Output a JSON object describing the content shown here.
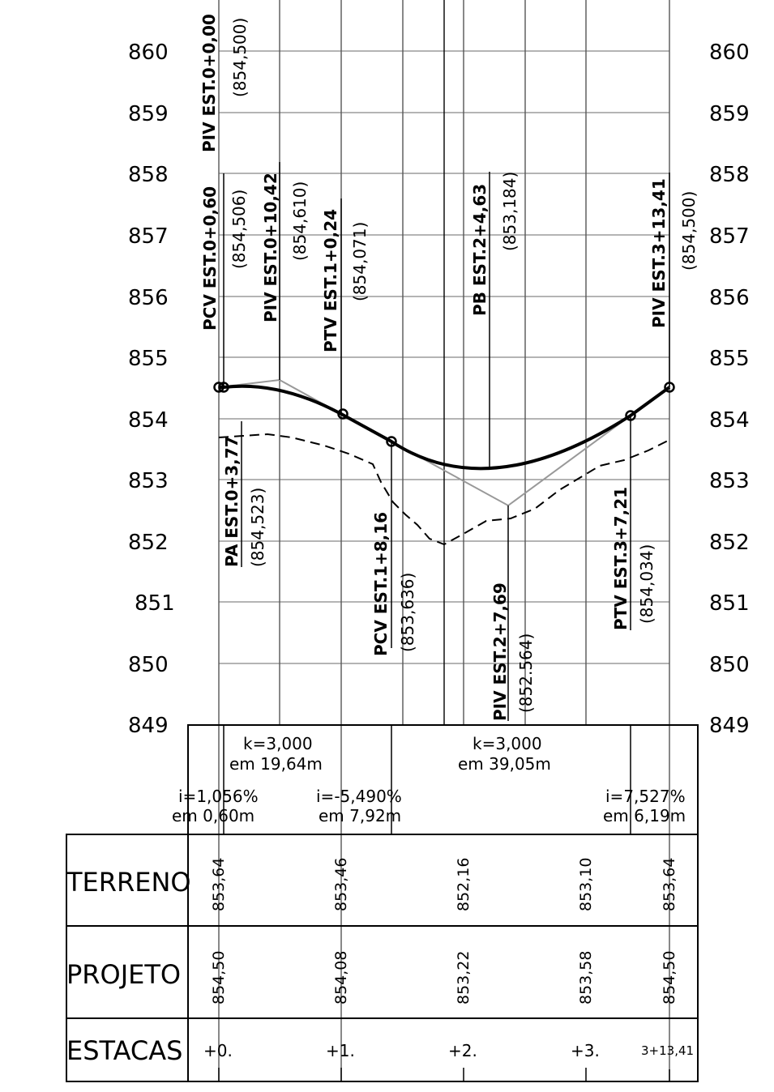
{
  "elevation_labels": [
    "860",
    "859",
    "858",
    "857",
    "856",
    "855",
    "854",
    "853",
    "852",
    "851",
    "850",
    "849"
  ],
  "stations": {
    "piv0": {
      "label": "PIV  EST.0+0,00",
      "elev": "(854,500)"
    },
    "pcv0": {
      "label": "PCV  EST.0+0,60",
      "elev": "(854,506)"
    },
    "piv0b": {
      "label": "PIV  EST.0+10,42",
      "elev": "(854,610)"
    },
    "ptv1": {
      "label": "PTV  EST.1+0,24",
      "elev": "(854,071)"
    },
    "pb2": {
      "label": "PB  EST.2+4,63",
      "elev": "(853,184)"
    },
    "piv3": {
      "label": "PIV  EST.3+13,41",
      "elev": "(854,500)"
    },
    "pa0": {
      "label": "PA  EST.0+3,77",
      "elev": "(854,523)"
    },
    "pcv1": {
      "label": "PCV  EST.1+8,16",
      "elev": "(853,636)"
    },
    "piv2": {
      "label": "PIV  EST.2+7,69",
      "elev": "(852.564)"
    },
    "ptv3": {
      "label": "PTV  EST.3+7,21",
      "elev": "(854,034)"
    }
  },
  "curves": {
    "k1": "k=3,000",
    "em1": "em  19,64m",
    "k2": "k=3,000",
    "em2": "em  39,05m"
  },
  "grades": {
    "g1": "i=1,056%",
    "g1em": "em  0,60m",
    "g2": "i=-5,490%",
    "g2em": "em  7,92m",
    "g3": "i=7,527%",
    "g3em": "em  6,19m"
  },
  "table": {
    "terreno_label": "TERRENO",
    "projeto_label": "PROJETO",
    "estacas_label": "ESTACAS",
    "terreno": [
      "853,64",
      "853,46",
      "852,16",
      "853,10",
      "853,64"
    ],
    "projeto": [
      "854,50",
      "854,08",
      "853,22",
      "853,58",
      "854,50"
    ],
    "estacas": [
      "+0.",
      "+1.",
      "+2.",
      "+3.",
      "3+13,41"
    ]
  }
}
